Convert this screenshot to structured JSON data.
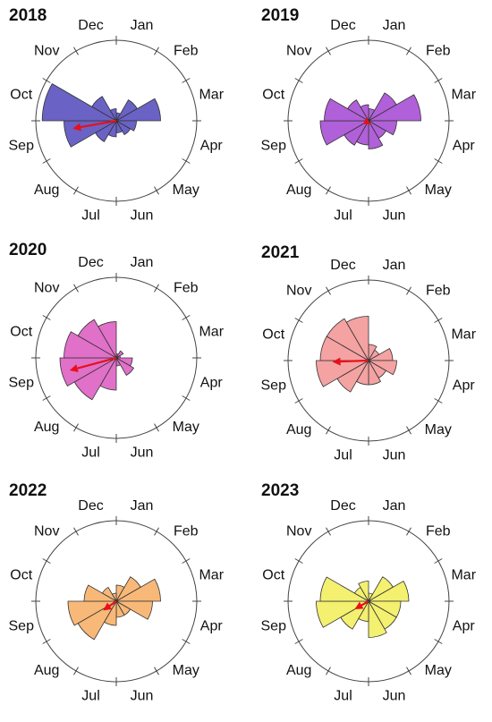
{
  "chart_data": [
    {
      "type": "rose",
      "title": "2018",
      "color": "#6a62c4",
      "categories": [
        "Jan",
        "Feb",
        "Mar",
        "Apr",
        "May",
        "Jun",
        "Jul",
        "Aug",
        "Sep",
        "Oct",
        "Nov",
        "Dec"
      ],
      "values": [
        0.1,
        0.3,
        0.55,
        0.25,
        0.2,
        0.15,
        0.2,
        0.3,
        0.65,
        0.92,
        0.35,
        0.15
      ],
      "rlim": [
        0,
        1
      ],
      "mean_vector": {
        "direction": 260,
        "length": 0.55
      }
    },
    {
      "type": "rose",
      "title": "2019",
      "color": "#b060d8",
      "categories": [
        "Jan",
        "Feb",
        "Mar",
        "Apr",
        "May",
        "Jun",
        "Jul",
        "Aug",
        "Sep",
        "Oct",
        "Nov",
        "Dec"
      ],
      "values": [
        0.15,
        0.4,
        0.65,
        0.35,
        0.25,
        0.35,
        0.3,
        0.35,
        0.6,
        0.55,
        0.3,
        0.2
      ],
      "rlim": [
        0,
        1
      ],
      "mean_vector": {
        "direction": 240,
        "length": 0.08
      }
    },
    {
      "type": "rose",
      "title": "2020",
      "color": "#e070c8",
      "categories": [
        "Jan",
        "Feb",
        "Mar",
        "Apr",
        "May",
        "Jun",
        "Jul",
        "Aug",
        "Sep",
        "Oct",
        "Nov",
        "Dec"
      ],
      "values": [
        0.05,
        0.1,
        0.05,
        0.2,
        0.25,
        0.1,
        0.4,
        0.6,
        0.7,
        0.65,
        0.55,
        0.45
      ],
      "rlim": [
        0,
        1
      ],
      "mean_vector": {
        "direction": 255,
        "length": 0.6
      }
    },
    {
      "type": "rose",
      "title": "2021",
      "color": "#f4a2a2",
      "categories": [
        "Jan",
        "Feb",
        "Mar",
        "Apr",
        "May",
        "Jun",
        "Jul",
        "Aug",
        "Sep",
        "Oct",
        "Nov",
        "Dec"
      ],
      "values": [
        0.2,
        0.15,
        0.3,
        0.35,
        0.25,
        0.3,
        0.3,
        0.45,
        0.65,
        0.6,
        0.6,
        0.55
      ],
      "rlim": [
        0,
        1
      ],
      "mean_vector": {
        "direction": 268,
        "length": 0.45
      }
    },
    {
      "type": "rose",
      "title": "2022",
      "color": "#f8b878",
      "categories": [
        "Jan",
        "Feb",
        "Mar",
        "Apr",
        "May",
        "Jun",
        "Jul",
        "Aug",
        "Sep",
        "Oct",
        "Nov",
        "Dec"
      ],
      "values": [
        0.2,
        0.35,
        0.55,
        0.45,
        0.2,
        0.2,
        0.3,
        0.55,
        0.6,
        0.4,
        0.2,
        0.1
      ],
      "rlim": [
        0,
        1
      ],
      "mean_vector": {
        "direction": 235,
        "length": 0.2
      }
    },
    {
      "type": "rose",
      "title": "2023",
      "color": "#f4f070",
      "categories": [
        "Jan",
        "Feb",
        "Mar",
        "Apr",
        "May",
        "Jun",
        "Jul",
        "Aug",
        "Sep",
        "Oct",
        "Nov",
        "Dec"
      ],
      "values": [
        0.1,
        0.35,
        0.5,
        0.4,
        0.4,
        0.45,
        0.25,
        0.4,
        0.65,
        0.6,
        0.2,
        0.25
      ],
      "rlim": [
        0,
        1
      ],
      "mean_vector": {
        "direction": 240,
        "length": 0.2
      }
    }
  ]
}
